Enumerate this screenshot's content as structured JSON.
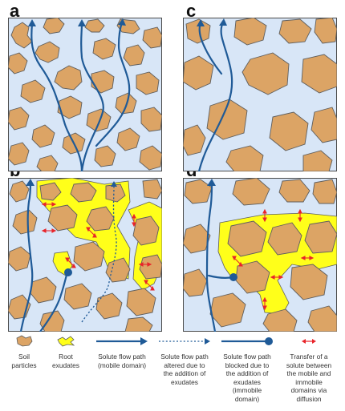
{
  "panels": {
    "a": {
      "letter": "a"
    },
    "b": {
      "letter": "b"
    },
    "c": {
      "letter": "c"
    },
    "d": {
      "letter": "d"
    }
  },
  "colors": {
    "background": "#d8e6f7",
    "soil": "#dca465",
    "soil_outline": "#5e5e5e",
    "exudate": "#ffff1a",
    "flow": "#1f5a97",
    "diffusion_arrow": "#e8242a",
    "frame": "#4a4a4a"
  },
  "legend": {
    "soil": {
      "label": "Soil\nparticles",
      "icon": "soil-particle-icon"
    },
    "root": {
      "label": "Root\nexudates",
      "icon": "root-exudate-icon"
    },
    "mobile": {
      "label": "Solute flow path\n(mobile domain)",
      "icon": "solid-arrow-icon"
    },
    "altered": {
      "label": "Solute flow path\naltered due to\nthe addition of\nexudates",
      "icon": "dotted-arrow-icon"
    },
    "blocked": {
      "label": "Solute flow path\nblocked due to\nthe addition of\nexudates\n(immobile\ndomain)",
      "icon": "blocked-path-icon"
    },
    "transfer": {
      "label": "Transfer of a\nsolute between\nthe mobile and\nimmobile\ndomains via\ndiffusion",
      "icon": "double-arrow-icon"
    }
  }
}
